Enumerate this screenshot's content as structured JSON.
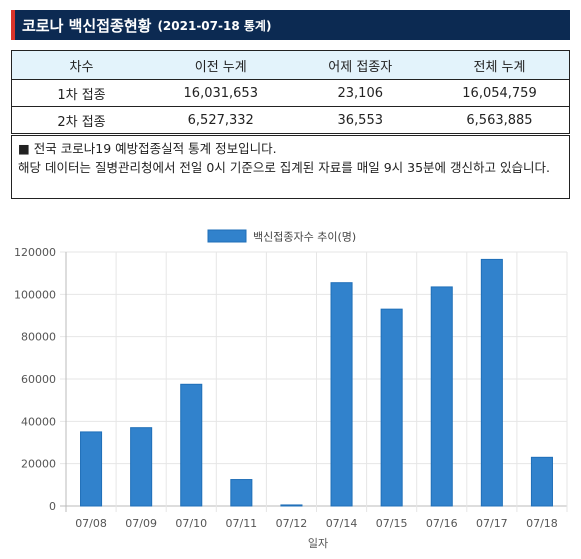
{
  "header": {
    "title": "코로나 백신접종현황",
    "date": "(2021-07-18 통계)"
  },
  "stats_table": {
    "headers": [
      "차수",
      "이전 누계",
      "어제 접종자",
      "전체 누계"
    ],
    "rows": [
      [
        "1차 접종",
        "16,031,653",
        "23,106",
        "16,054,759"
      ],
      [
        "2차 접종",
        "6,527,332",
        "36,553",
        "6,563,885"
      ]
    ]
  },
  "notice": {
    "line1": "■ 전국 코로나19 예방접종실적 통계 정보입니다.",
    "line2": "해당 데이터는 질병관리청에서 전일 0시 기준으로 집계된 자료를 매일 9시 35분에 갱신하고 있습니다."
  },
  "chart_data": {
    "type": "bar",
    "categories": [
      "07/08",
      "07/09",
      "07/10",
      "07/11",
      "07/12",
      "07/14",
      "07/15",
      "07/16",
      "07/17",
      "07/18"
    ],
    "series": [
      {
        "name": "백신접종자수 추이(명)",
        "values": [
          35000,
          37000,
          57500,
          12500,
          500,
          105500,
          93000,
          103500,
          116500,
          23000
        ]
      }
    ],
    "xlabel": "일자",
    "ylabel": "",
    "ylim": [
      0,
      120000
    ],
    "yticks": [
      0,
      20000,
      40000,
      60000,
      80000,
      100000,
      120000
    ],
    "grid": true,
    "legend": "top-center",
    "bar_color": "#3182cc",
    "bar_border": "#1f6fb8"
  }
}
